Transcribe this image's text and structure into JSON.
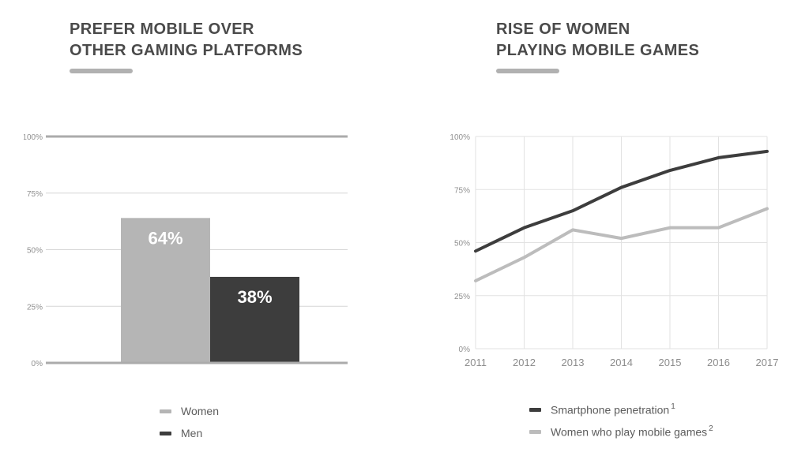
{
  "colors": {
    "title_text": "#4a4a4a",
    "accent_bar": "#b1b1b1",
    "axis_label": "#8f8f8f",
    "grid_light": "#d6d6d6",
    "grid_lighter": "#e2e2e2",
    "grid_strong": "#ababab",
    "legend_text": "#5c5c5c",
    "bar_label_text": "#ffffff",
    "women_gray": "#b5b5b5",
    "men_dark": "#3d3d3d"
  },
  "left": {
    "title_line1": "PREFER MOBILE OVER",
    "title_line2": "OTHER GAMING PLATFORMS",
    "legend": [
      {
        "label": "Women",
        "color": "#b5b5b5"
      },
      {
        "label": "Men",
        "color": "#3d3d3d"
      }
    ]
  },
  "right": {
    "title_line1": "RISE OF WOMEN",
    "title_line2": "PLAYING MOBILE GAMES",
    "legend": [
      {
        "label": "Smartphone penetration",
        "superscript": "1",
        "color": "#3d3d3d"
      },
      {
        "label": "Women who play mobile games",
        "superscript": "2",
        "color": "#bcbcbc"
      }
    ]
  },
  "chart_data": [
    {
      "type": "bar",
      "title": "Prefer mobile over other gaming platforms",
      "categories": [
        "Women",
        "Men"
      ],
      "values": [
        64,
        38
      ],
      "value_labels": [
        "64%",
        "38%"
      ],
      "bar_colors": [
        "#b5b5b5",
        "#3d3d3d"
      ],
      "xlabel": "",
      "ylabel": "",
      "ylim": [
        0,
        100
      ],
      "yticks": [
        0,
        25,
        50,
        75,
        100
      ],
      "ytick_labels": [
        "0%",
        "25%",
        "50%",
        "75%",
        "100%"
      ],
      "grid": "horizontal",
      "legend_position": "bottom"
    },
    {
      "type": "line",
      "title": "Rise of women playing mobile games",
      "x": [
        2011,
        2012,
        2013,
        2014,
        2015,
        2016,
        2017
      ],
      "series": [
        {
          "name": "Smartphone penetration",
          "footnote_marker": "1",
          "color": "#3d3d3d",
          "values": [
            46,
            57,
            65,
            76,
            84,
            90,
            93
          ]
        },
        {
          "name": "Women who play mobile games",
          "footnote_marker": "2",
          "color": "#bcbcbc",
          "values": [
            32,
            43,
            56,
            52,
            57,
            57,
            66
          ]
        }
      ],
      "xlabel": "",
      "ylabel": "",
      "ylim": [
        0,
        100
      ],
      "yticks": [
        0,
        25,
        50,
        75,
        100
      ],
      "ytick_labels": [
        "0%",
        "25%",
        "50%",
        "75%",
        "100%"
      ],
      "grid": "both",
      "legend_position": "bottom"
    }
  ]
}
